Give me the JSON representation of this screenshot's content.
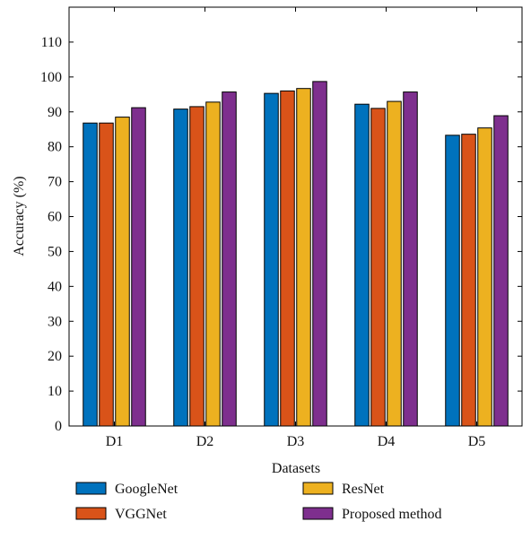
{
  "chart_data": {
    "type": "bar",
    "title": "",
    "xlabel": "Datasets",
    "ylabel": "Accuracy (%)",
    "categories": [
      "D1",
      "D2",
      "D3",
      "D4",
      "D5"
    ],
    "ylim": [
      0,
      120
    ],
    "yticks": [
      0,
      10,
      20,
      30,
      40,
      50,
      60,
      70,
      80,
      90,
      100,
      110
    ],
    "grid": false,
    "legend_position": "bottom",
    "series": [
      {
        "name": "GoogleNet",
        "color": "#0072BD",
        "values": [
          86.8,
          90.8,
          95.3,
          92.2,
          83.3
        ]
      },
      {
        "name": "VGGNet",
        "color": "#D95319",
        "values": [
          86.8,
          91.5,
          96.0,
          91.0,
          83.6
        ]
      },
      {
        "name": "ResNet",
        "color": "#EDB120",
        "values": [
          88.5,
          92.8,
          96.7,
          93.0,
          85.4
        ]
      },
      {
        "name": "Proposed method",
        "color": "#7E2F8E",
        "values": [
          91.2,
          95.7,
          98.7,
          95.7,
          88.9
        ]
      }
    ]
  }
}
